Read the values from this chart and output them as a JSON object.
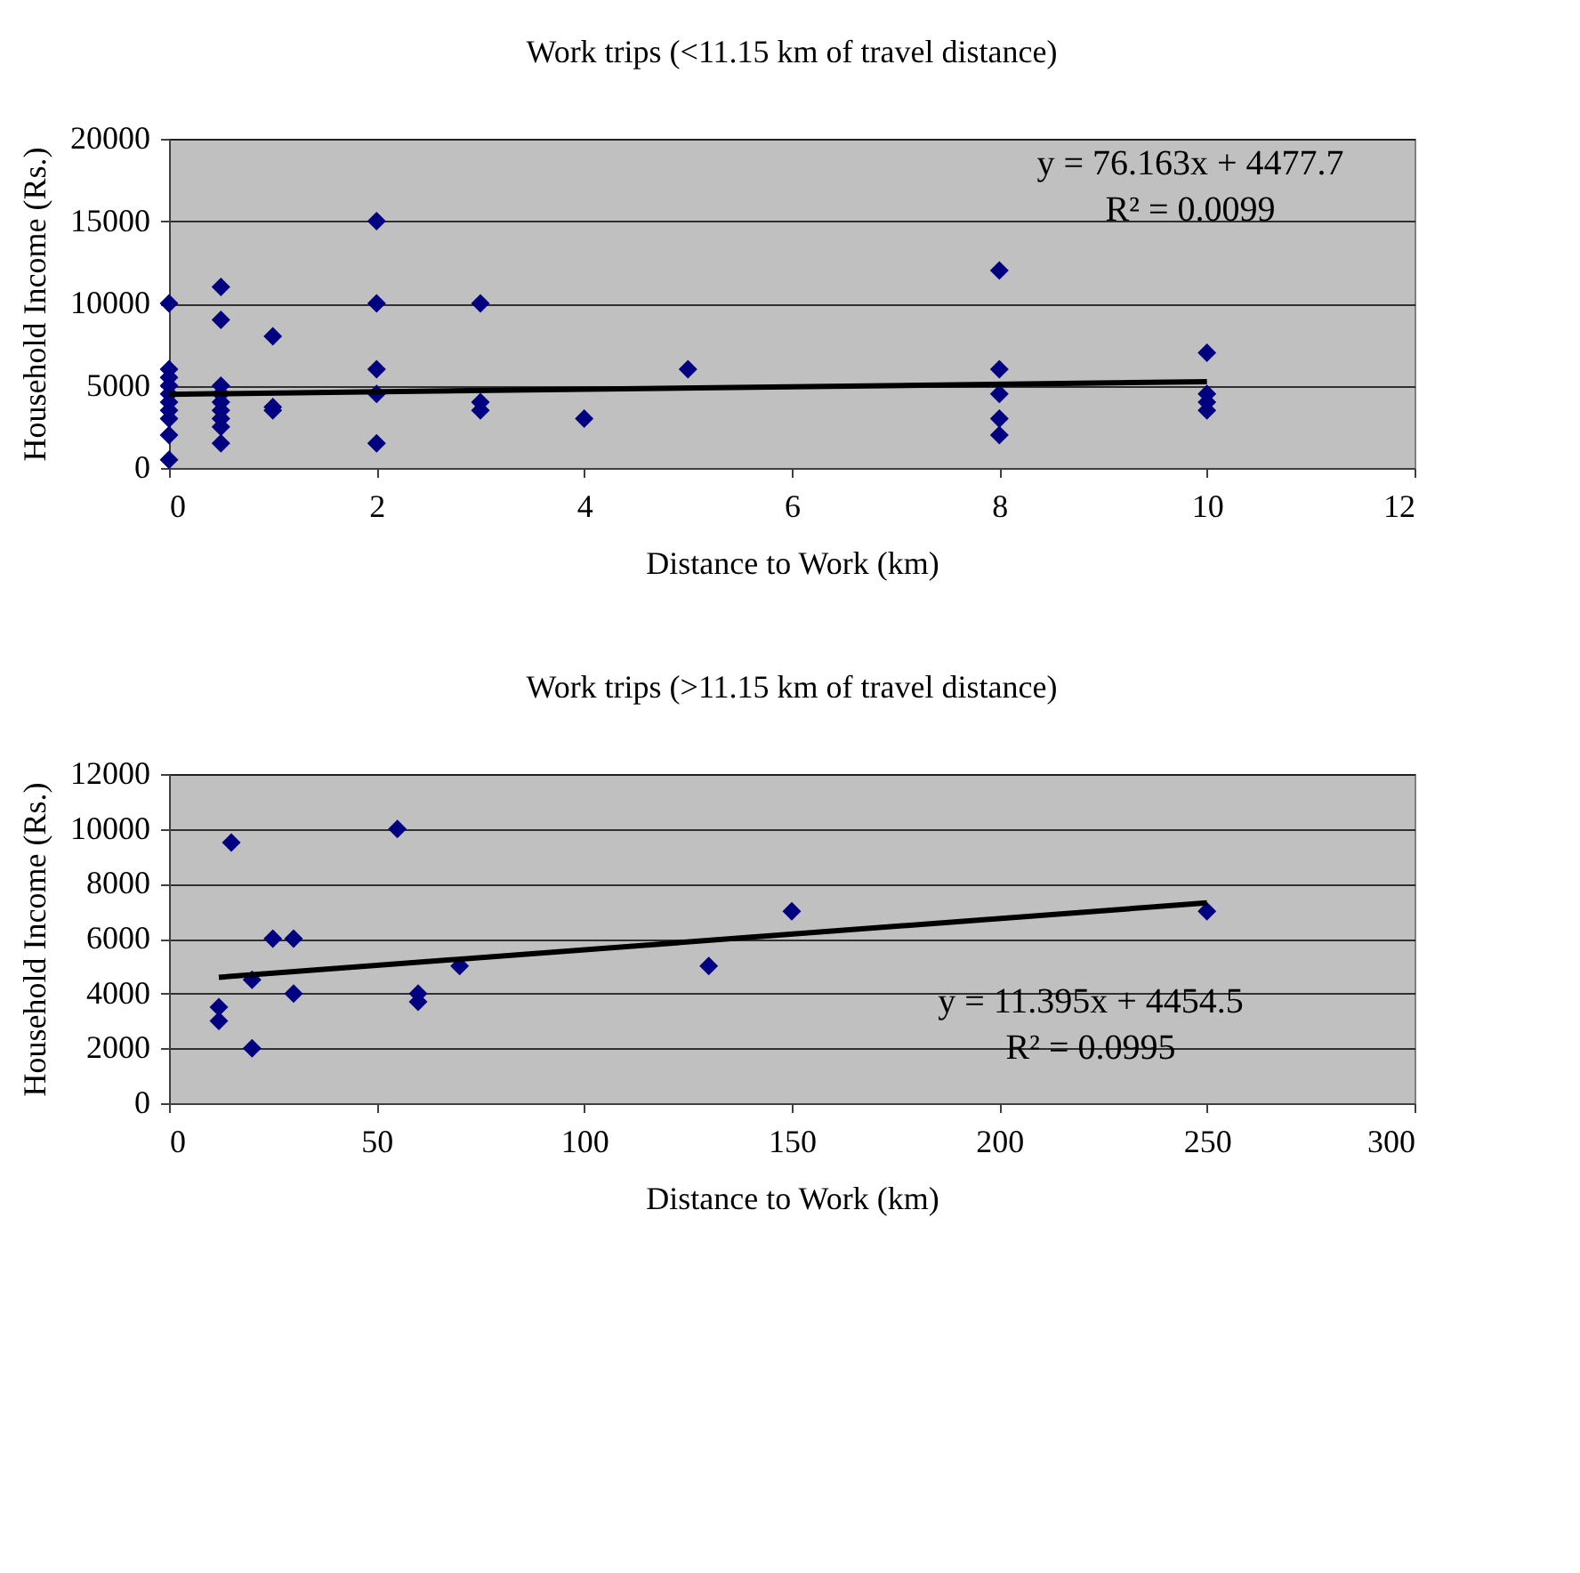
{
  "chart_data": [
    {
      "type": "scatter",
      "title": "Work trips (<11.15 km of travel distance)",
      "xlabel": "Distance to Work (km)",
      "ylabel": "Household Income (Rs.)",
      "xlim": [
        0,
        12
      ],
      "xticks": [
        0,
        2,
        4,
        6,
        8,
        10,
        12
      ],
      "ylim": [
        0,
        20000
      ],
      "yticks": [
        0,
        5000,
        10000,
        15000,
        20000
      ],
      "grid": "y",
      "series": [
        {
          "color": "#000080",
          "marker": "diamond",
          "x": [
            0,
            0,
            0,
            0,
            0,
            0,
            0,
            0,
            0,
            0,
            0.5,
            0.5,
            0.5,
            0.5,
            0.5,
            0.5,
            0.5,
            0.5,
            0.5,
            1,
            1,
            1,
            2,
            2,
            2,
            2,
            2,
            3,
            3,
            3,
            4,
            5,
            8,
            8,
            8,
            8,
            8,
            10,
            10,
            10,
            10
          ],
          "values": [
            10000,
            6000,
            5500,
            5000,
            4500,
            4000,
            3500,
            3000,
            2000,
            500,
            11000,
            9000,
            5000,
            4500,
            4000,
            3500,
            3000,
            2500,
            1500,
            8000,
            3700,
            3500,
            15000,
            10000,
            6000,
            4500,
            1500,
            10000,
            4000,
            3500,
            3000,
            6000,
            12000,
            6000,
            4500,
            3000,
            2000,
            7000,
            4500,
            4000,
            3500
          ]
        },
        {
          "type": "line",
          "color": "#000000",
          "marker": "none",
          "x": [
            0,
            10
          ],
          "values": [
            4478,
            5239
          ]
        }
      ],
      "annotations": [
        "y = 76.163x + 4477.7",
        "R² = 0.0099"
      ]
    },
    {
      "type": "scatter",
      "title": "Work trips (>11.15 km of travel distance)",
      "xlabel": "Distance to Work (km)",
      "ylabel": "Household Income (Rs.)",
      "xlim": [
        0,
        300
      ],
      "xticks": [
        0,
        50,
        100,
        150,
        200,
        250,
        300
      ],
      "ylim": [
        0,
        12000
      ],
      "yticks": [
        0,
        2000,
        4000,
        6000,
        8000,
        10000,
        12000
      ],
      "grid": "y",
      "series": [
        {
          "color": "#000080",
          "marker": "diamond",
          "x": [
            12,
            12,
            15,
            20,
            20,
            25,
            30,
            30,
            55,
            60,
            60,
            70,
            130,
            150,
            250
          ],
          "values": [
            3500,
            3000,
            9500,
            4500,
            2000,
            6000,
            6000,
            4000,
            10000,
            4000,
            3700,
            5000,
            5000,
            7000,
            7000
          ]
        },
        {
          "type": "line",
          "color": "#000000",
          "marker": "none",
          "x": [
            12,
            250
          ],
          "values": [
            4591,
            7303
          ]
        }
      ],
      "annotations": [
        "y = 11.395x + 4454.5",
        "R² = 0.0995"
      ]
    }
  ]
}
